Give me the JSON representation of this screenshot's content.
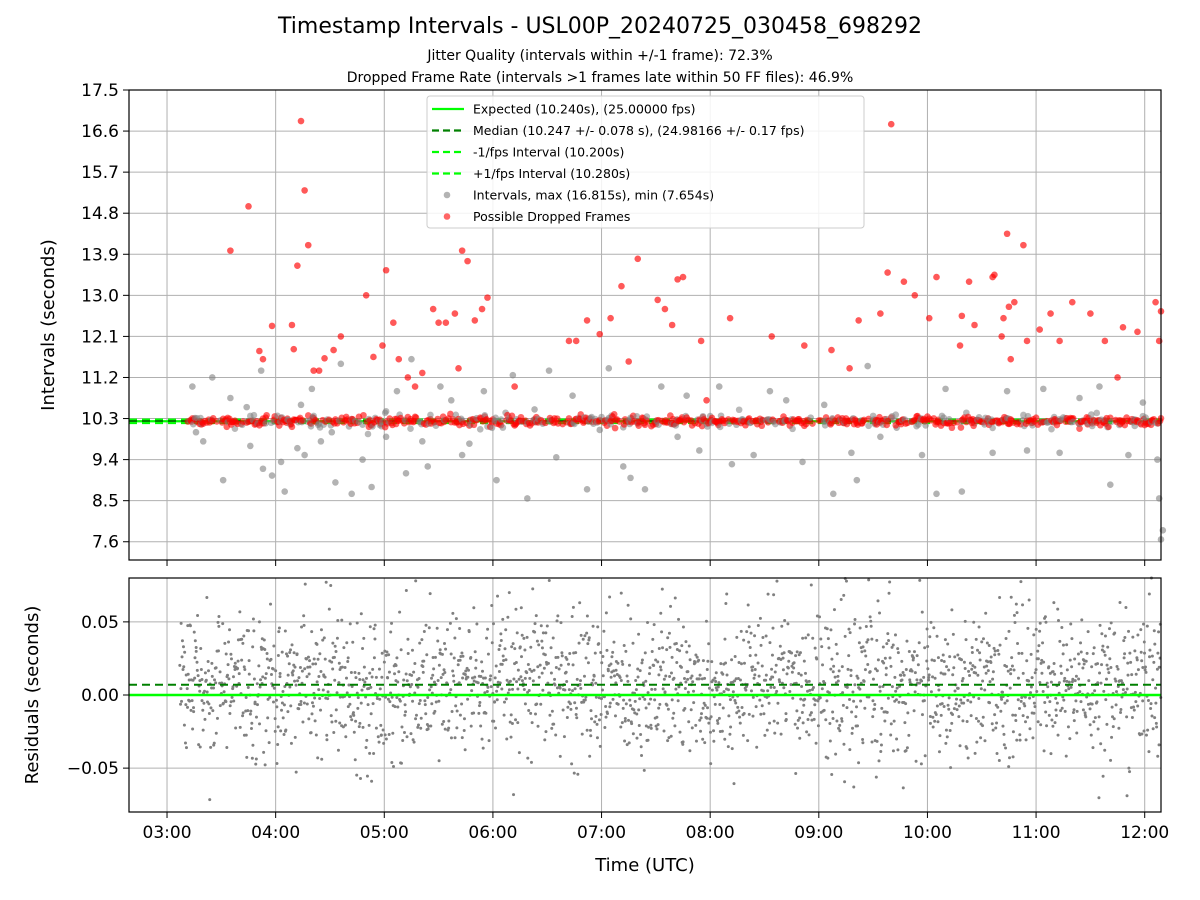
{
  "chart_data": [
    {
      "type": "scatter",
      "title": "Timestamp Intervals - USL00P_20240725_030458_698292",
      "subtitle_1": "Jitter Quality (intervals within +/-1 frame): 72.3%",
      "subtitle_2": "Dropped Frame Rate (intervals >1 frames late within 50 FF files): 46.9%",
      "xlabel": "",
      "ylabel": "Intervals (seconds)",
      "x_range": [
        "02:39",
        "12:09"
      ],
      "ylim": [
        7.2,
        17.5
      ],
      "yticks": [
        "7.6",
        "8.5",
        "9.4",
        "10.3",
        "11.2",
        "12.1",
        "13.0",
        "13.9",
        "14.8",
        "15.7",
        "16.6",
        "17.5"
      ],
      "grid": true,
      "legend_position": "upper-center",
      "legend": [
        {
          "label": "Expected (10.240s), (25.00000 fps)",
          "style": "solid",
          "color": "#00ff00"
        },
        {
          "label": "Median (10.247 +/- 0.078 s), (24.98166 +/- 0.17 fps)",
          "style": "dashed",
          "color": "#008000"
        },
        {
          "label": "-1/fps Interval (10.200s)",
          "style": "dashed",
          "color": "#00ff00"
        },
        {
          "label": "+1/fps Interval (10.280s)",
          "style": "dashed",
          "color": "#00ff00"
        },
        {
          "label": "Intervals, max (16.815s), min (7.654s)",
          "style": "marker",
          "color": "#808080"
        },
        {
          "label": "Possible Dropped Frames",
          "style": "marker",
          "color": "#ff0000"
        }
      ],
      "reference_lines": {
        "expected": 10.24,
        "median": 10.247,
        "minus_1_fps": 10.2,
        "plus_1_fps": 10.28
      },
      "series": [
        {
          "name": "Intervals, max (16.815s), min (7.654s)",
          "color": "#808080",
          "points": [
            [
              "03:14",
              11.0
            ],
            [
              "03:16",
              10.0
            ],
            [
              "03:20",
              9.8
            ],
            [
              "03:25",
              11.2
            ],
            [
              "03:31",
              8.95
            ],
            [
              "03:35",
              10.75
            ],
            [
              "03:44",
              10.55
            ],
            [
              "03:46",
              9.7
            ],
            [
              "03:52",
              11.35
            ],
            [
              "03:53",
              9.2
            ],
            [
              "03:58",
              9.05
            ],
            [
              "04:03",
              9.35
            ],
            [
              "04:05",
              8.7
            ],
            [
              "04:12",
              9.65
            ],
            [
              "04:14",
              10.6
            ],
            [
              "04:16",
              9.5
            ],
            [
              "04:20",
              10.95
            ],
            [
              "04:25",
              9.8
            ],
            [
              "04:31",
              10.0
            ],
            [
              "04:33",
              8.9
            ],
            [
              "04:36",
              11.5
            ],
            [
              "04:42",
              8.65
            ],
            [
              "04:48",
              9.4
            ],
            [
              "04:53",
              8.8
            ],
            [
              "05:01",
              9.9
            ],
            [
              "05:07",
              10.9
            ],
            [
              "05:12",
              9.1
            ],
            [
              "05:15",
              11.6
            ],
            [
              "05:21",
              9.8
            ],
            [
              "05:24",
              9.25
            ],
            [
              "05:31",
              11.0
            ],
            [
              "05:37",
              10.7
            ],
            [
              "05:43",
              9.5
            ],
            [
              "05:47",
              9.75
            ],
            [
              "05:55",
              10.9
            ],
            [
              "06:02",
              8.95
            ],
            [
              "06:11",
              11.25
            ],
            [
              "06:19",
              8.55
            ],
            [
              "06:23",
              10.5
            ],
            [
              "06:31",
              11.35
            ],
            [
              "06:35",
              9.45
            ],
            [
              "06:44",
              10.8
            ],
            [
              "06:52",
              8.75
            ],
            [
              "06:59",
              10.05
            ],
            [
              "07:04",
              11.4
            ],
            [
              "07:12",
              9.25
            ],
            [
              "07:16",
              9.0
            ],
            [
              "07:24",
              8.75
            ],
            [
              "07:33",
              11.0
            ],
            [
              "07:42",
              9.9
            ],
            [
              "07:47",
              10.8
            ],
            [
              "07:54",
              9.6
            ],
            [
              "08:05",
              11.0
            ],
            [
              "08:12",
              9.3
            ],
            [
              "08:24",
              9.5
            ],
            [
              "08:33",
              10.9
            ],
            [
              "08:42",
              10.7
            ],
            [
              "08:51",
              9.35
            ],
            [
              "09:03",
              10.6
            ],
            [
              "09:08",
              8.65
            ],
            [
              "09:18",
              9.55
            ],
            [
              "09:21",
              8.95
            ],
            [
              "09:27",
              11.45
            ],
            [
              "09:34",
              9.9
            ],
            [
              "09:43",
              10.1
            ],
            [
              "09:57",
              9.5
            ],
            [
              "10:05",
              8.65
            ],
            [
              "10:10",
              10.95
            ],
            [
              "10:19",
              8.7
            ],
            [
              "10:26",
              10.2
            ],
            [
              "10:36",
              9.55
            ],
            [
              "10:44",
              10.9
            ],
            [
              "10:55",
              9.6
            ],
            [
              "11:04",
              10.95
            ],
            [
              "11:13",
              9.55
            ],
            [
              "11:24",
              10.75
            ],
            [
              "11:35",
              11.0
            ],
            [
              "11:41",
              8.85
            ],
            [
              "11:51",
              9.5
            ],
            [
              "11:59",
              10.65
            ],
            [
              "12:07",
              9.4
            ],
            [
              "12:09",
              7.65
            ],
            [
              "12:10",
              7.85
            ],
            [
              "12:08",
              8.55
            ]
          ]
        },
        {
          "name": "Possible Dropped Frames",
          "color": "#ff0000",
          "points": [
            [
              "04:09",
              12.35
            ],
            [
              "04:10",
              11.82
            ],
            [
              "04:12",
              13.65
            ],
            [
              "04:14",
              16.82
            ],
            [
              "04:16",
              15.3
            ],
            [
              "04:18",
              14.1
            ],
            [
              "04:21",
              11.35
            ],
            [
              "04:24",
              11.35
            ],
            [
              "04:27",
              11.62
            ],
            [
              "04:32",
              11.8
            ],
            [
              "04:36",
              12.1
            ],
            [
              "03:35",
              13.98
            ],
            [
              "03:45",
              14.95
            ],
            [
              "03:51",
              11.78
            ],
            [
              "03:53",
              11.6
            ],
            [
              "03:58",
              12.33
            ],
            [
              "04:50",
              13.0
            ],
            [
              "04:54",
              11.65
            ],
            [
              "04:59",
              11.9
            ],
            [
              "05:01",
              13.55
            ],
            [
              "05:05",
              12.4
            ],
            [
              "05:08",
              11.6
            ],
            [
              "05:13",
              11.2
            ],
            [
              "05:17",
              11.0
            ],
            [
              "05:21",
              11.3
            ],
            [
              "05:27",
              12.7
            ],
            [
              "05:30",
              12.4
            ],
            [
              "05:34",
              12.4
            ],
            [
              "05:39",
              12.6
            ],
            [
              "05:41",
              11.4
            ],
            [
              "05:43",
              13.98
            ],
            [
              "05:46",
              13.75
            ],
            [
              "05:50",
              12.45
            ],
            [
              "05:54",
              12.7
            ],
            [
              "05:57",
              12.95
            ],
            [
              "06:12",
              11.0
            ],
            [
              "06:42",
              12.0
            ],
            [
              "06:46",
              12.0
            ],
            [
              "06:52",
              12.45
            ],
            [
              "06:59",
              12.15
            ],
            [
              "07:05",
              12.5
            ],
            [
              "07:11",
              13.2
            ],
            [
              "07:15",
              11.55
            ],
            [
              "07:20",
              13.8
            ],
            [
              "07:31",
              12.9
            ],
            [
              "07:35",
              12.7
            ],
            [
              "07:39",
              12.35
            ],
            [
              "07:42",
              13.35
            ],
            [
              "07:45",
              13.4
            ],
            [
              "07:55",
              12.0
            ],
            [
              "07:58",
              10.7
            ],
            [
              "08:11",
              12.5
            ],
            [
              "08:34",
              12.1
            ],
            [
              "08:52",
              11.9
            ],
            [
              "09:07",
              11.8
            ],
            [
              "09:17",
              11.4
            ],
            [
              "09:22",
              12.45
            ],
            [
              "09:34",
              12.6
            ],
            [
              "09:38",
              13.5
            ],
            [
              "09:40",
              16.75
            ],
            [
              "09:47",
              13.3
            ],
            [
              "09:53",
              13.0
            ],
            [
              "10:01",
              12.5
            ],
            [
              "10:05",
              13.4
            ],
            [
              "10:18",
              11.9
            ],
            [
              "10:19",
              12.55
            ],
            [
              "10:23",
              13.3
            ],
            [
              "10:26",
              12.35
            ],
            [
              "10:36",
              13.4
            ],
            [
              "10:37",
              13.45
            ],
            [
              "10:41",
              12.1
            ],
            [
              "10:42",
              12.5
            ],
            [
              "10:44",
              14.35
            ],
            [
              "10:45",
              12.75
            ],
            [
              "10:46",
              11.6
            ],
            [
              "10:48",
              12.85
            ],
            [
              "10:53",
              14.1
            ],
            [
              "10:55",
              12.0
            ],
            [
              "11:02",
              12.25
            ],
            [
              "11:08",
              12.6
            ],
            [
              "11:13",
              12.0
            ],
            [
              "11:20",
              12.85
            ],
            [
              "11:30",
              12.6
            ],
            [
              "11:38",
              12.0
            ],
            [
              "11:45",
              11.2
            ],
            [
              "11:48",
              12.3
            ],
            [
              "11:56",
              12.2
            ],
            [
              "12:06",
              12.85
            ],
            [
              "12:08",
              12.0
            ],
            [
              "12:09",
              12.65
            ]
          ]
        }
      ]
    },
    {
      "type": "scatter",
      "xlabel": "Time (UTC)",
      "ylabel": "Residuals (seconds)",
      "x_range": [
        "02:39",
        "12:09"
      ],
      "xticks": [
        "03:00",
        "04:00",
        "05:00",
        "06:00",
        "07:00",
        "08:00",
        "09:00",
        "10:00",
        "11:00",
        "12:00"
      ],
      "ylim": [
        -0.08,
        0.08
      ],
      "yticks": [
        "0.05",
        "0.00",
        "−0.05"
      ],
      "grid": true,
      "reference_lines": {
        "expected": 0.0,
        "median": 0.007
      },
      "series": [
        {
          "name": "Residuals",
          "color": "#808080",
          "x_range": [
            "03:07",
            "12:09"
          ],
          "y_spread": [
            -0.08,
            0.08
          ],
          "count": 2200
        }
      ]
    }
  ]
}
